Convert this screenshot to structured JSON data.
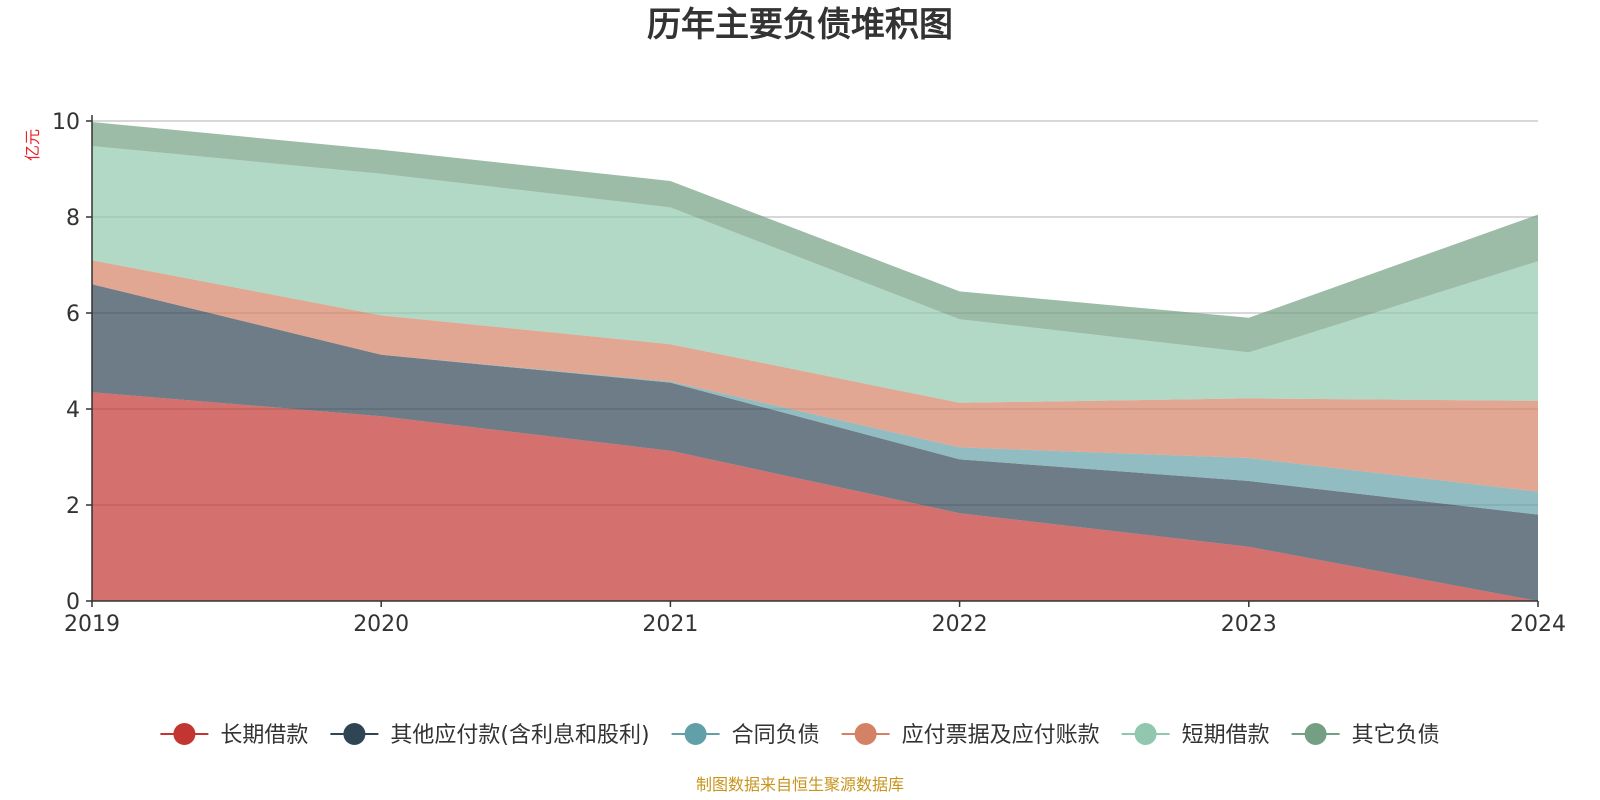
{
  "chart_data": {
    "type": "area",
    "stacked": true,
    "title": "历年主要负债堆积图",
    "unit_label": "亿元",
    "source": "制图数据来自恒生聚源数据库",
    "xlabel": "",
    "ylabel": "亿元",
    "ylim": [
      0,
      10
    ],
    "yticks": [
      0,
      2,
      4,
      6,
      8,
      10
    ],
    "grid": true,
    "legend_position": "bottom",
    "categories": [
      "2019",
      "2020",
      "2021",
      "2022",
      "2023",
      "2024"
    ],
    "series": [
      {
        "name": "长期借款",
        "color": "#c23531",
        "values": [
          4.35,
          3.85,
          3.13,
          1.83,
          1.13,
          0.0
        ]
      },
      {
        "name": "其他应付款(含利息和股利)",
        "color": "#2f4554",
        "values": [
          2.25,
          1.28,
          1.42,
          1.12,
          1.37,
          1.8
        ]
      },
      {
        "name": "合同负债",
        "color": "#61a0a8",
        "values": [
          0.0,
          0.0,
          0.02,
          0.25,
          0.48,
          0.48
        ]
      },
      {
        "name": "应付票据及应付账款",
        "color": "#d48265",
        "values": [
          0.5,
          0.82,
          0.78,
          0.93,
          1.24,
          1.89
        ]
      },
      {
        "name": "短期借款",
        "color": "#91c7ae",
        "values": [
          2.38,
          2.95,
          2.85,
          1.74,
          0.96,
          2.91
        ]
      },
      {
        "name": "其它负债",
        "color": "#749f83",
        "values": [
          0.5,
          0.5,
          0.55,
          0.58,
          0.72,
          0.97
        ]
      }
    ]
  }
}
